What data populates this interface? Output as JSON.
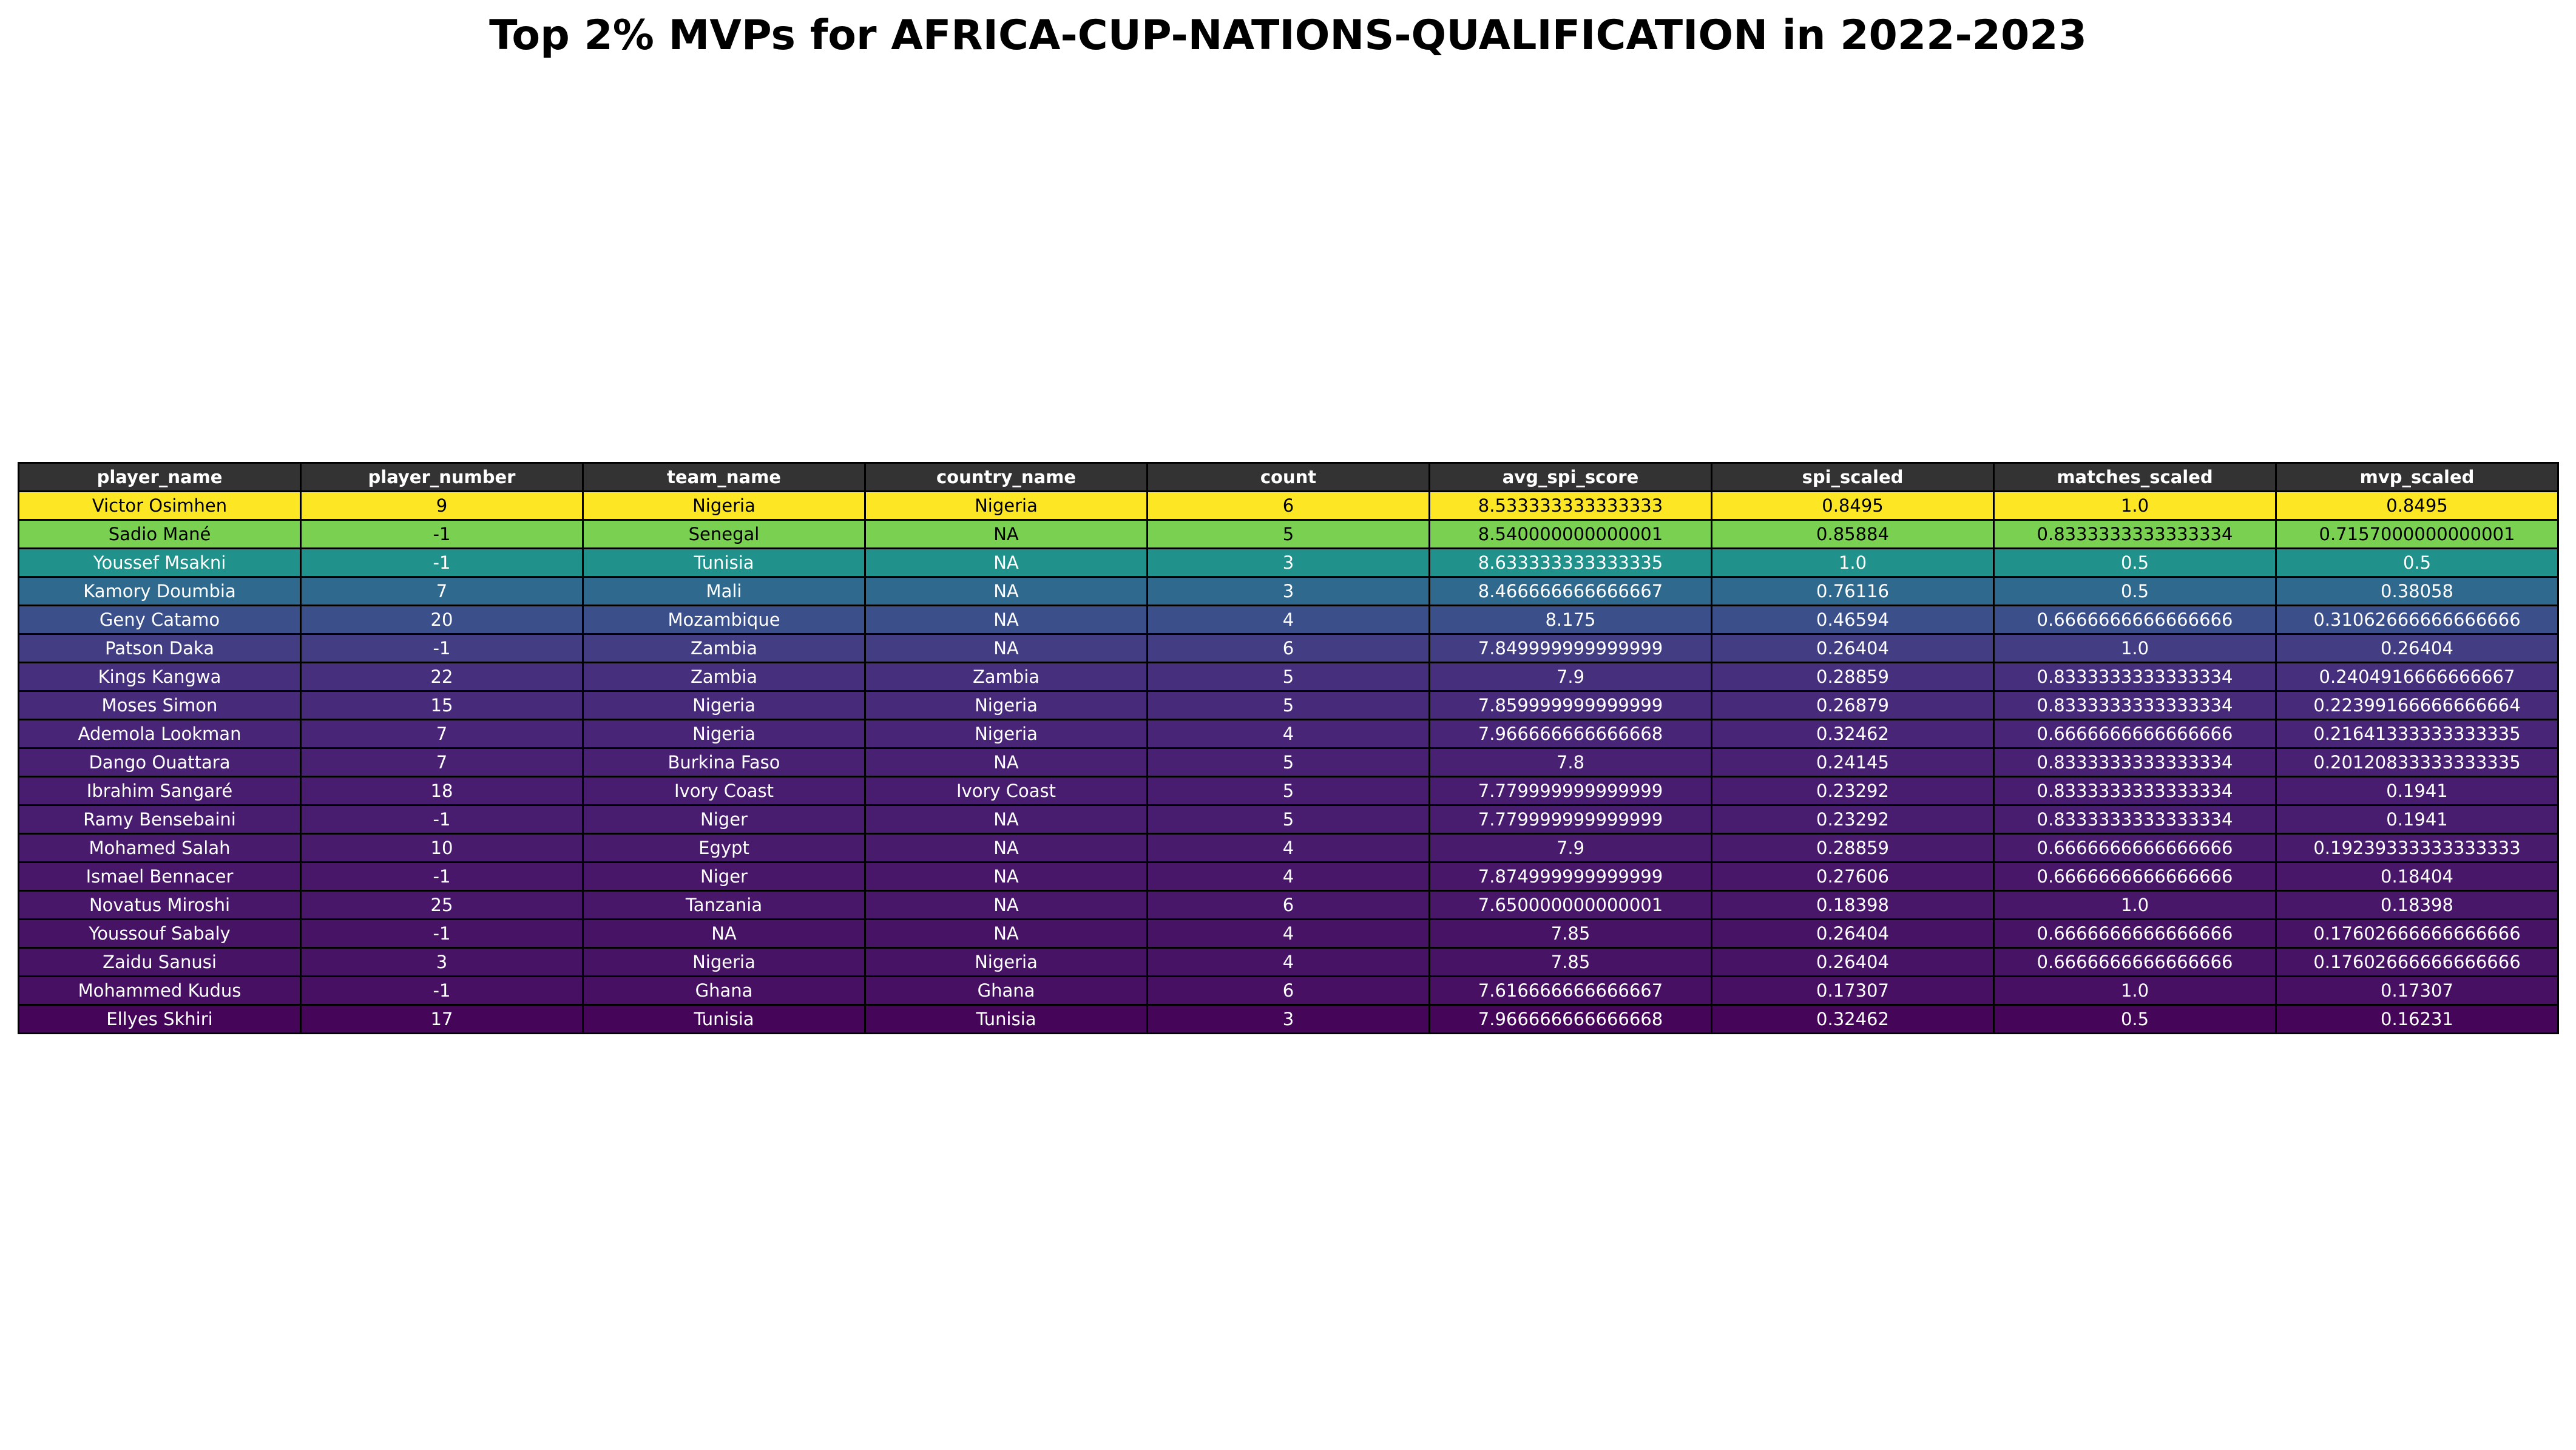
{
  "title": "Top 2% MVPs for AFRICA-CUP-NATIONS-QUALIFICATION in 2022-2023",
  "chart_data": {
    "type": "table",
    "title": "Top 2% MVPs for AFRICA-CUP-NATIONS-QUALIFICATION in 2022-2023",
    "columns": [
      "player_name",
      "player_number",
      "team_name",
      "country_name",
      "count",
      "avg_spi_score",
      "spi_scaled",
      "matches_scaled",
      "mvp_scaled"
    ],
    "header_style": {
      "background": "#333333",
      "color": "#ffffff"
    },
    "rows": [
      {
        "cells": [
          "Victor Osimhen",
          "9",
          "Nigeria",
          "Nigeria",
          "6",
          "8.533333333333333",
          "0.8495",
          "1.0",
          "0.8495"
        ],
        "color": "#fde725",
        "text_color": "#000000"
      },
      {
        "cells": [
          "Sadio Mané",
          "-1",
          "Senegal",
          "NA",
          "5",
          "8.540000000000001",
          "0.85884",
          "0.8333333333333334",
          "0.7157000000000001"
        ],
        "color": "#7ad151",
        "text_color": "#000000"
      },
      {
        "cells": [
          "Youssef Msakni",
          "-1",
          "Tunisia",
          "NA",
          "3",
          "8.633333333333335",
          "1.0",
          "0.5",
          "0.5"
        ],
        "color": "#21918c",
        "text_color": "#ffffff"
      },
      {
        "cells": [
          "Kamory Doumbia",
          "7",
          "Mali",
          "NA",
          "3",
          "8.466666666666667",
          "0.76116",
          "0.5",
          "0.38058"
        ],
        "color": "#30698e",
        "text_color": "#ffffff"
      },
      {
        "cells": [
          "Geny Catamo",
          "20",
          "Mozambique",
          "NA",
          "4",
          "8.175",
          "0.46594",
          "0.6666666666666666",
          "0.31062666666666666"
        ],
        "color": "#3b4f8a",
        "text_color": "#ffffff"
      },
      {
        "cells": [
          "Patson Daka",
          "-1",
          "Zambia",
          "NA",
          "6",
          "7.849999999999999",
          "0.26404",
          "1.0",
          "0.26404"
        ],
        "color": "#433d84",
        "text_color": "#ffffff"
      },
      {
        "cells": [
          "Kings Kangwa",
          "22",
          "Zambia",
          "Zambia",
          "5",
          "7.9",
          "0.28859",
          "0.8333333333333334",
          "0.2404916666666667"
        ],
        "color": "#46307e",
        "text_color": "#ffffff"
      },
      {
        "cells": [
          "Moses Simon",
          "15",
          "Nigeria",
          "Nigeria",
          "5",
          "7.859999999999999",
          "0.26879",
          "0.8333333333333334",
          "0.22399166666666664"
        ],
        "color": "#472a7a",
        "text_color": "#ffffff"
      },
      {
        "cells": [
          "Ademola Lookman",
          "7",
          "Nigeria",
          "Nigeria",
          "4",
          "7.966666666666668",
          "0.32462",
          "0.6666666666666666",
          "0.21641333333333335"
        ],
        "color": "#482576",
        "text_color": "#ffffff"
      },
      {
        "cells": [
          "Dango Ouattara",
          "7",
          "Burkina Faso",
          "NA",
          "5",
          "7.8",
          "0.24145",
          "0.8333333333333334",
          "0.20120833333333335"
        ],
        "color": "#482173",
        "text_color": "#ffffff"
      },
      {
        "cells": [
          "Ibrahim Sangaré",
          "18",
          "Ivory Coast",
          "Ivory Coast",
          "5",
          "7.779999999999999",
          "0.23292",
          "0.8333333333333334",
          "0.1941"
        ],
        "color": "#481c6e",
        "text_color": "#ffffff"
      },
      {
        "cells": [
          "Ramy Bensebaini",
          "-1",
          "Niger",
          "NA",
          "5",
          "7.779999999999999",
          "0.23292",
          "0.8333333333333334",
          "0.1941"
        ],
        "color": "#481c6e",
        "text_color": "#ffffff"
      },
      {
        "cells": [
          "Mohamed Salah",
          "10",
          "Egypt",
          "NA",
          "4",
          "7.9",
          "0.28859",
          "0.6666666666666666",
          "0.19239333333333333"
        ],
        "color": "#481b6d",
        "text_color": "#ffffff"
      },
      {
        "cells": [
          "Ismael Bennacer",
          "-1",
          "Niger",
          "NA",
          "4",
          "7.874999999999999",
          "0.27606",
          "0.6666666666666666",
          "0.18404"
        ],
        "color": "#481769",
        "text_color": "#ffffff"
      },
      {
        "cells": [
          "Novatus Miroshi",
          "25",
          "Tanzania",
          "NA",
          "6",
          "7.650000000000001",
          "0.18398",
          "1.0",
          "0.18398"
        ],
        "color": "#481769",
        "text_color": "#ffffff"
      },
      {
        "cells": [
          "Youssouf Sabaly",
          "-1",
          "NA",
          "NA",
          "4",
          "7.85",
          "0.26404",
          "0.6666666666666666",
          "0.17602666666666666"
        ],
        "color": "#471365",
        "text_color": "#ffffff"
      },
      {
        "cells": [
          "Zaidu Sanusi",
          "3",
          "Nigeria",
          "Nigeria",
          "4",
          "7.85",
          "0.26404",
          "0.6666666666666666",
          "0.17602666666666666"
        ],
        "color": "#471365",
        "text_color": "#ffffff"
      },
      {
        "cells": [
          "Mohammed Kudus",
          "-1",
          "Ghana",
          "Ghana",
          "6",
          "7.616666666666667",
          "0.17307",
          "1.0",
          "0.17307"
        ],
        "color": "#471063",
        "text_color": "#ffffff"
      },
      {
        "cells": [
          "Ellyes Skhiri",
          "17",
          "Tunisia",
          "Tunisia",
          "3",
          "7.966666666666668",
          "0.32462",
          "0.5",
          "0.16231"
        ],
        "color": "#450559",
        "text_color": "#ffffff"
      }
    ]
  }
}
